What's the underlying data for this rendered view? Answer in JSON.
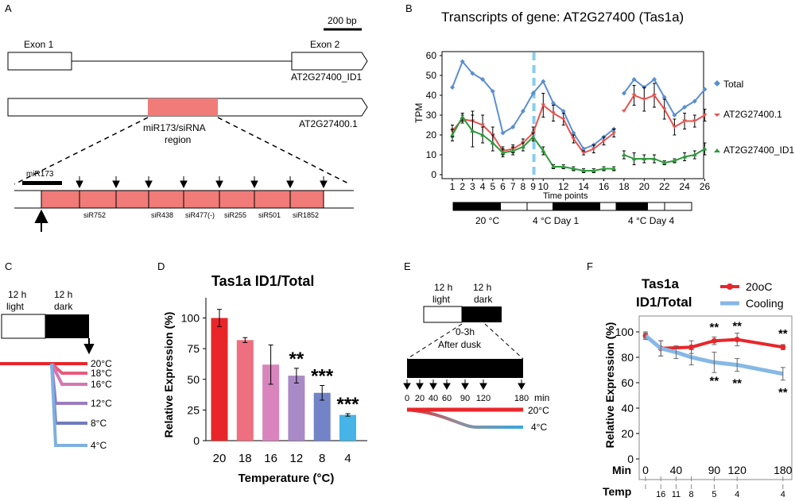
{
  "panel_letters": {
    "a": "A",
    "b": "B",
    "c": "C",
    "d": "D",
    "e": "E",
    "f": "F"
  },
  "panelA": {
    "scale_bar": "200 bp",
    "exon1": "Exon 1",
    "exon2": "Exon 2",
    "id1_label": "AT2G27400_ID1",
    "t1_label": "AT2G27400.1",
    "region_label_1": "miR173/siRNA",
    "region_label_2": "region",
    "mir173": "miR173",
    "sirnas": [
      "siR752",
      "siR438",
      "siR477(-)",
      "siR255",
      "siR501",
      "siR1852"
    ]
  },
  "panelB_bars": {
    "cond1": "20 °C",
    "cond2": "4 °C Day 1",
    "cond3": "4 °C Day 4"
  },
  "panelC": {
    "light": [
      "12 h",
      "light"
    ],
    "dark": [
      "12 h",
      "dark"
    ],
    "temps": [
      "20°C",
      "18°C",
      "16°C",
      "12°C",
      "8°C",
      "4°C"
    ],
    "colors": [
      "#e8262a",
      "#e85a7e",
      "#d576b4",
      "#9b7cc0",
      "#6f7bbf",
      "#7fb0e0"
    ]
  },
  "panelE": {
    "light": [
      "12 h",
      "light"
    ],
    "dark": [
      "12 h",
      "dark"
    ],
    "window": [
      "0-3h",
      "After dusk"
    ],
    "times": [
      "0",
      "20",
      "40",
      "60",
      "90",
      "120",
      "180"
    ],
    "unit": "min",
    "lines": [
      "20°C",
      "4°C"
    ],
    "colors": {
      "warm": "#e8262a",
      "cold": "#37a6df"
    }
  },
  "chart_data": [
    {
      "id": "B",
      "type": "line",
      "title": "Transcripts of gene: AT2G27400 (Tas1a)",
      "xlabel": "Time points",
      "ylabel": "TPM",
      "ylim": [
        0,
        60
      ],
      "yticks": [
        0,
        10,
        20,
        30,
        40,
        50,
        60
      ],
      "xticks": [
        "1",
        "2",
        "3",
        "4",
        "5",
        "6",
        "7",
        "8",
        "9",
        "10",
        "12",
        "14",
        "16",
        "18",
        "20",
        "22",
        "24",
        "26"
      ],
      "legend": [
        "Total",
        "AT2G27400.1",
        "AT2G27400_ID1"
      ],
      "series": [
        {
          "name": "Total",
          "color": "#5b8fd0",
          "segments": [
            [
              [
                1,
                44
              ],
              [
                2,
                57
              ],
              [
                3,
                51
              ],
              [
                4,
                48
              ],
              [
                5,
                42
              ],
              [
                6,
                21
              ],
              [
                7,
                24
              ],
              [
                8,
                32
              ],
              [
                9,
                41
              ],
              [
                10,
                47
              ],
              [
                11,
                36
              ],
              [
                12,
                32
              ],
              [
                13,
                21
              ],
              [
                14,
                13
              ],
              [
                15,
                15
              ],
              [
                16,
                19
              ],
              [
                17,
                23
              ]
            ],
            [
              [
                18,
                41
              ],
              [
                19,
                48
              ],
              [
                20,
                44
              ],
              [
                21,
                48
              ],
              [
                22,
                39
              ],
              [
                23,
                30
              ],
              [
                24,
                34
              ],
              [
                25,
                37
              ],
              [
                26,
                43
              ]
            ]
          ]
        },
        {
          "name": "AT2G27400.1",
          "color": "#e8534f",
          "segments": [
            [
              [
                1,
                22
              ],
              [
                2,
                28
              ],
              [
                3,
                27
              ],
              [
                4,
                25
              ],
              [
                5,
                20
              ],
              [
                6,
                12
              ],
              [
                7,
                13
              ],
              [
                8,
                16
              ],
              [
                9,
                21
              ],
              [
                10,
                35
              ],
              [
                11,
                31
              ],
              [
                12,
                28
              ],
              [
                13,
                18
              ],
              [
                14,
                11
              ],
              [
                15,
                13
              ],
              [
                16,
                17
              ],
              [
                17,
                21
              ]
            ],
            [
              [
                18,
                32
              ],
              [
                19,
                40
              ],
              [
                20,
                38
              ],
              [
                21,
                40
              ],
              [
                22,
                33
              ],
              [
                23,
                24
              ],
              [
                24,
                27
              ],
              [
                25,
                27
              ],
              [
                26,
                30
              ]
            ]
          ],
          "errors": [
            [
              [
                1,
                3
              ],
              [
                2,
                2
              ],
              [
                3,
                5
              ],
              [
                4,
                5
              ],
              [
                5,
                4
              ],
              [
                6,
                2
              ],
              [
                7,
                2
              ],
              [
                8,
                2
              ],
              [
                9,
                3
              ],
              [
                10,
                6
              ],
              [
                11,
                4
              ],
              [
                12,
                3
              ],
              [
                13,
                2
              ],
              [
                14,
                1
              ],
              [
                15,
                2
              ],
              [
                16,
                2
              ],
              [
                17,
                2
              ]
            ],
            [
              [
                18,
                0
              ],
              [
                19,
                5
              ],
              [
                20,
                6
              ],
              [
                21,
                6
              ],
              [
                22,
                5
              ],
              [
                23,
                4
              ],
              [
                24,
                4
              ],
              [
                25,
                3
              ],
              [
                26,
                3
              ]
            ]
          ]
        },
        {
          "name": "AT2G27400_ID1",
          "color": "#2e9a3c",
          "segments": [
            [
              [
                1,
                20
              ],
              [
                2,
                29
              ],
              [
                3,
                22
              ],
              [
                4,
                20
              ],
              [
                5,
                16
              ],
              [
                6,
                11
              ],
              [
                7,
                12
              ],
              [
                8,
                14
              ],
              [
                9,
                19
              ],
              [
                10,
                12
              ],
              [
                11,
                4
              ],
              [
                12,
                4
              ],
              [
                13,
                3
              ],
              [
                14,
                2
              ],
              [
                15,
                2
              ],
              [
                16,
                3
              ],
              [
                17,
                3
              ]
            ],
            [
              [
                18,
                10
              ],
              [
                19,
                8
              ],
              [
                20,
                8
              ],
              [
                21,
                8
              ],
              [
                22,
                6
              ],
              [
                23,
                7
              ],
              [
                24,
                9
              ],
              [
                25,
                10
              ],
              [
                26,
                13
              ]
            ]
          ],
          "errors": [
            [
              [
                1,
                3
              ],
              [
                2,
                2
              ],
              [
                3,
                8
              ],
              [
                4,
                4
              ],
              [
                5,
                4
              ],
              [
                6,
                2
              ],
              [
                7,
                2
              ],
              [
                8,
                2
              ],
              [
                9,
                2
              ],
              [
                10,
                2
              ],
              [
                11,
                1
              ],
              [
                12,
                1
              ],
              [
                13,
                1
              ],
              [
                14,
                1
              ],
              [
                15,
                1
              ],
              [
                16,
                1
              ],
              [
                17,
                1
              ]
            ],
            [
              [
                18,
                2
              ],
              [
                19,
                3
              ],
              [
                20,
                2
              ],
              [
                21,
                2
              ],
              [
                22,
                1
              ],
              [
                23,
                1
              ],
              [
                24,
                2
              ],
              [
                25,
                2
              ],
              [
                26,
                3
              ]
            ]
          ]
        }
      ],
      "marker_at": 9
    },
    {
      "id": "D",
      "type": "bar",
      "title": "Tas1a ID1/Total",
      "xlabel": "Temperature (°C)",
      "ylabel": "Relative Expression (%)",
      "ylim": [
        0,
        110
      ],
      "yticks": [
        0,
        25,
        50,
        75,
        100
      ],
      "categories": [
        "20",
        "18",
        "16",
        "12",
        "8",
        "4"
      ],
      "values": [
        100,
        82,
        62,
        53,
        39,
        21
      ],
      "errors": [
        7,
        2,
        16,
        6,
        6,
        1
      ],
      "colors": [
        "#e8262a",
        "#ee6f7f",
        "#da84bd",
        "#a98ac6",
        "#7383c7",
        "#46b4e6"
      ],
      "annotations": [
        "",
        "",
        "",
        "**",
        "***",
        "***"
      ]
    },
    {
      "id": "F",
      "type": "line",
      "title": [
        "Tas1a",
        "ID1/Total"
      ],
      "xlabel": "Min",
      "xlabel2": "Temp",
      "ylabel": "Relative Expression (%)",
      "ylim": [
        0,
        110
      ],
      "yticks": [
        0,
        20,
        40,
        60,
        80,
        100
      ],
      "xticks": [
        "0",
        "40",
        "90",
        "120",
        "180"
      ],
      "temp_ticks": [
        "16",
        "11",
        "8",
        "5",
        "4",
        "4"
      ],
      "legend": [
        "20oC",
        "Cooling"
      ],
      "series": [
        {
          "name": "20oC",
          "color": "#e8262a",
          "x": [
            0,
            20,
            60,
            90,
            120,
            180
          ],
          "values": [
            97,
            87,
            88,
            93,
            94,
            88
          ],
          "errors": [
            2,
            6,
            5,
            3,
            5,
            2
          ],
          "stars": [
            "",
            "",
            "",
            "**",
            "**",
            "**"
          ]
        },
        {
          "name": "Cooling",
          "color": "#86b8e6",
          "x": [
            0,
            20,
            40,
            60,
            90,
            120,
            180
          ],
          "values": [
            97,
            87,
            84,
            80,
            76,
            74,
            67
          ],
          "errors": [
            3,
            6,
            5,
            6,
            8,
            5,
            5
          ],
          "stars": [
            "",
            "",
            "",
            "",
            "**",
            "**",
            "**"
          ]
        }
      ]
    }
  ]
}
